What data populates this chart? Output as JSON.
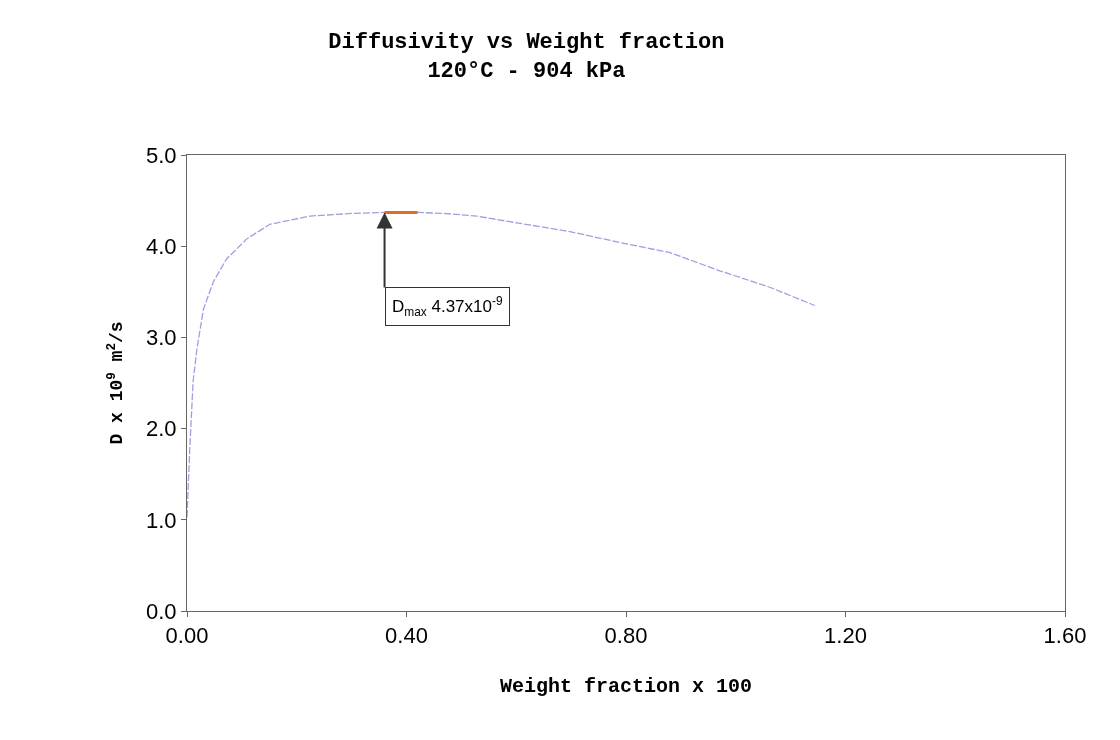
{
  "chart_data": {
    "type": "line",
    "title": "Diffusivity vs Weight fraction",
    "subtitle": "120°C - 904 kPa",
    "xlabel": "Weight fraction x 100",
    "ylabel": "D x 10$^{9}$ m$^{2}$/s",
    "series": [
      {
        "color": "#9f9fe0",
        "line_style": "dashed",
        "x": [
          0.0,
          0.005,
          0.011,
          0.018,
          0.03,
          0.048,
          0.072,
          0.109,
          0.151,
          0.224,
          0.302,
          0.36,
          0.42,
          0.467,
          0.528,
          0.607,
          0.698,
          0.789,
          0.88,
          0.971,
          1.062,
          1.144
        ],
        "values": [
          1.03,
          1.77,
          2.51,
          2.87,
          3.31,
          3.61,
          3.86,
          4.08,
          4.24,
          4.33,
          4.36,
          4.37,
          4.37,
          4.36,
          4.33,
          4.25,
          4.16,
          4.04,
          3.93,
          3.73,
          3.55,
          3.35
        ]
      },
      {
        "color": "#e07020",
        "line_style": "solid",
        "x": [
          0.36,
          0.42
        ],
        "values": [
          4.37,
          4.37
        ]
      }
    ],
    "annotations": [
      {
        "text": "D$_{max}$ 4.37x10$^{-9}$",
        "x": 0.36,
        "y": 4.37
      }
    ],
    "xlim": [
      0,
      1.6
    ],
    "xticks": [
      {
        "value": 0,
        "label": "0.00"
      },
      {
        "value": 0.4,
        "label": "0.40"
      },
      {
        "value": 0.8,
        "label": "0.80"
      },
      {
        "value": 1.2,
        "label": "1.20"
      },
      {
        "value": 1.6,
        "label": "1.60"
      }
    ],
    "ylim": [
      0,
      5
    ],
    "yticks": [
      {
        "value": 0,
        "label": "0.0"
      },
      {
        "value": 1,
        "label": "1.0"
      },
      {
        "value": 2,
        "label": "2.0"
      },
      {
        "value": 3,
        "label": "3.0"
      },
      {
        "value": 4,
        "label": "4.0"
      },
      {
        "value": 5,
        "label": "5.0"
      }
    ],
    "grid": false
  }
}
